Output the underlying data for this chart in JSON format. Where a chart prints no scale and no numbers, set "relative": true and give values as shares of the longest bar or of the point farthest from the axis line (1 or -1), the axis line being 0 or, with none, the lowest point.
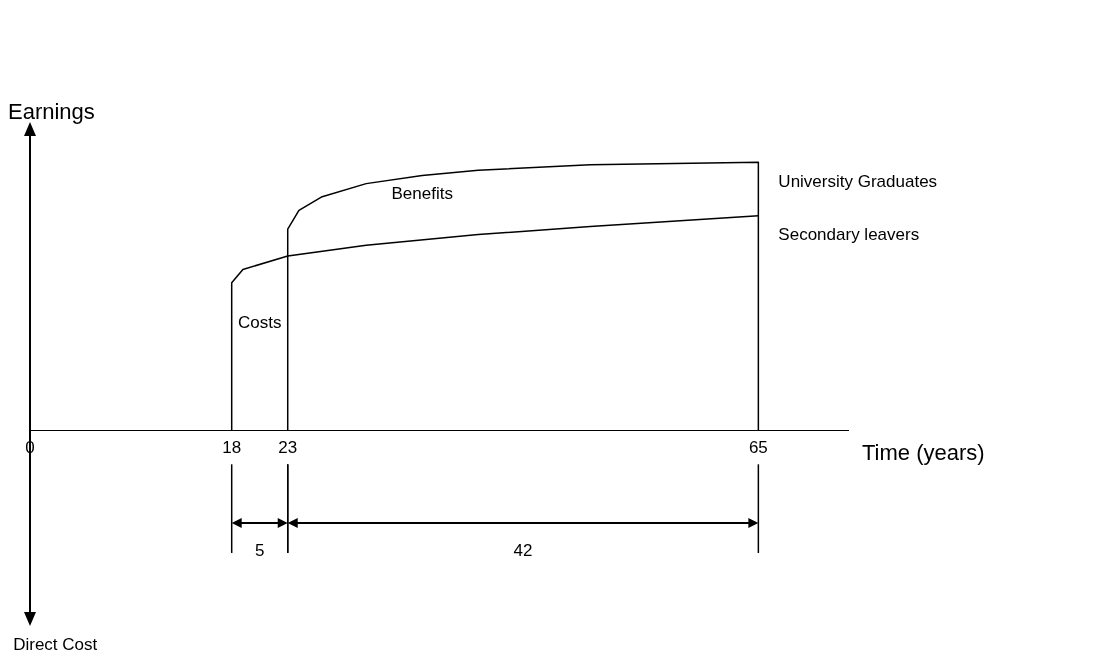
{
  "chart_data": {
    "type": "line",
    "relative": true,
    "xlabel": "Time (years)",
    "ylabel": "Earnings",
    "xlim": [
      0,
      73
    ],
    "xticks": [
      0,
      18,
      23,
      65
    ],
    "grid": false,
    "legend": false,
    "marker": "none",
    "line_style": "solid",
    "series": [
      {
        "name": "University Graduates",
        "color": "#000000",
        "x": [
          23,
          23,
          24,
          26,
          30,
          35,
          40,
          50,
          65,
          65
        ],
        "values": [
          0,
          0.75,
          0.82,
          0.87,
          0.92,
          0.95,
          0.97,
          0.99,
          1.0,
          0
        ]
      },
      {
        "name": "Secondary leavers",
        "color": "#000000",
        "x": [
          18,
          18,
          19,
          23,
          30,
          40,
          50,
          65
        ],
        "values": [
          0,
          0.55,
          0.6,
          0.65,
          0.69,
          0.73,
          0.76,
          0.8
        ]
      }
    ],
    "annotations": [
      "Benefits",
      "Costs",
      "5",
      "42",
      "Direct Cost"
    ]
  }
}
